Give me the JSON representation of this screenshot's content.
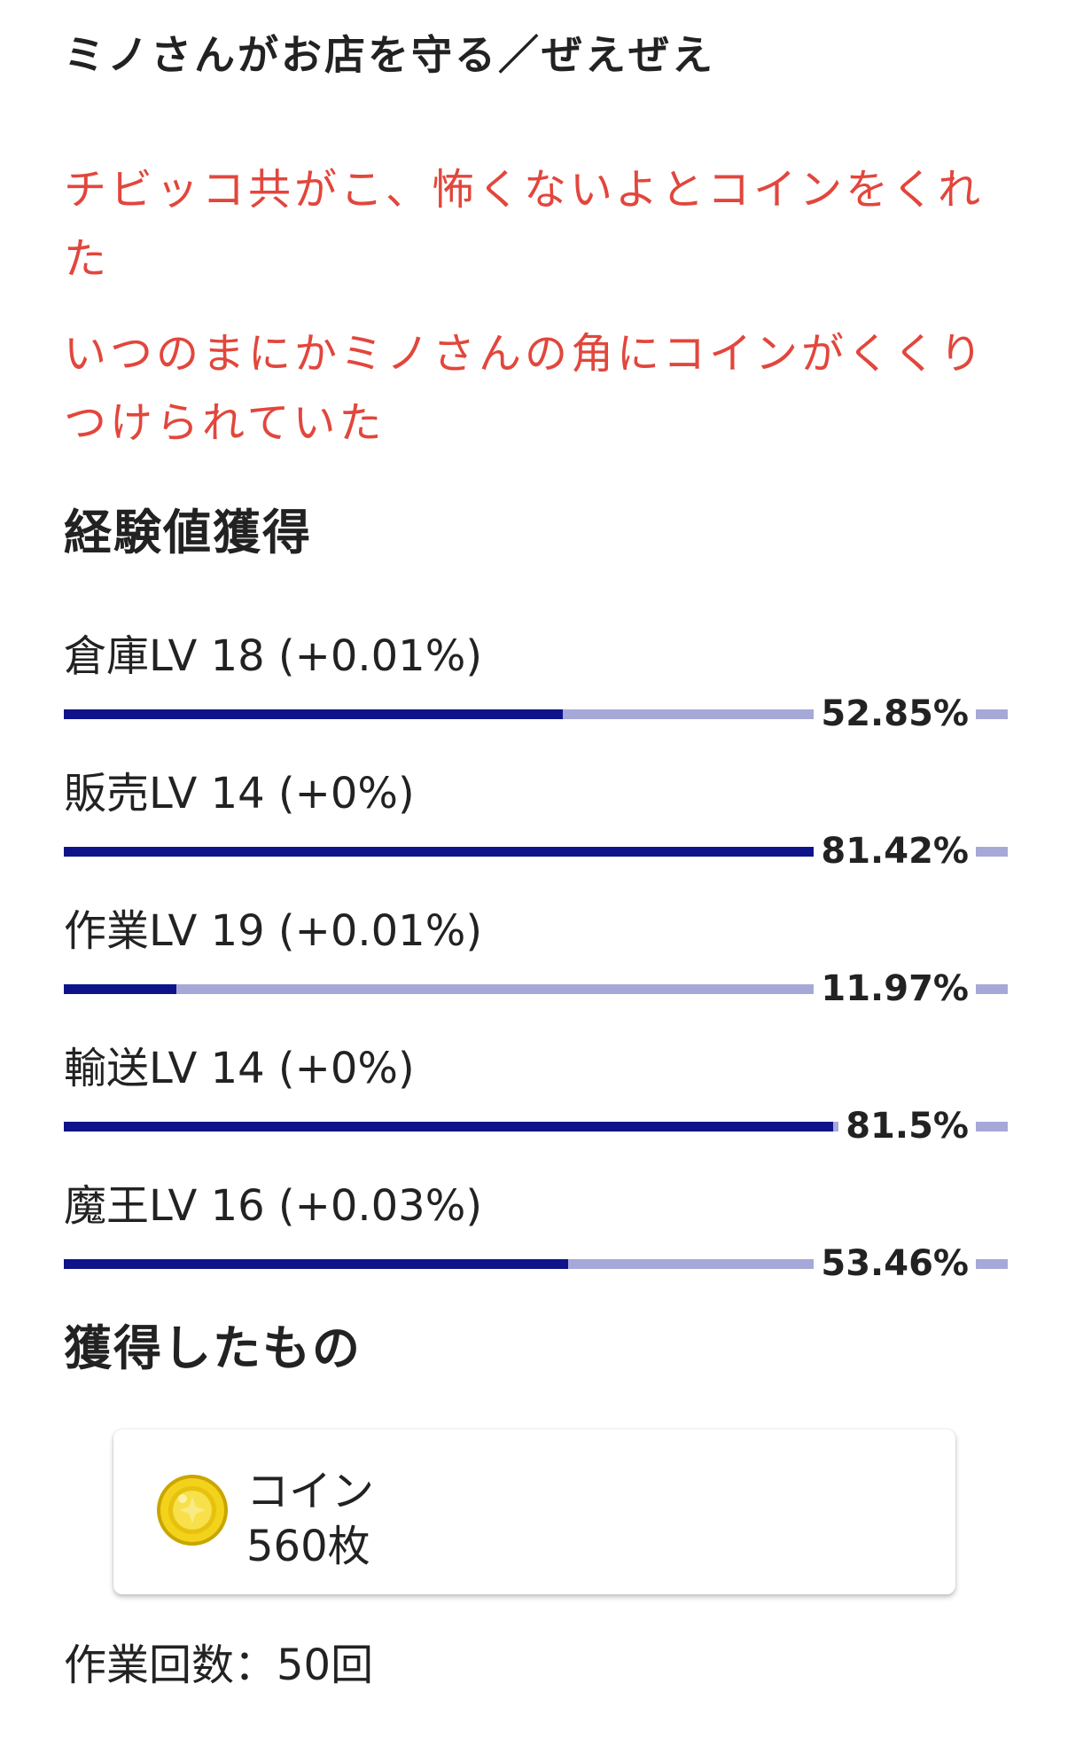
{
  "title": "ミノさんがお店を守る／ぜえぜえ",
  "messages": [
    "チビッコ共がこ、怖くないよとコインをくれた",
    "いつのまにかミノさんの角にコインがくくりつけられていた"
  ],
  "exp_heading": "経験値獲得",
  "skills": [
    {
      "label": "倉庫LV 18 (+0.01%)",
      "percent_text": "52.85%",
      "progress": 52.85
    },
    {
      "label": "販売LV 14 (+0%)",
      "percent_text": "81.42%",
      "progress": 81.42
    },
    {
      "label": "作業LV 19 (+0.01%)",
      "percent_text": "11.97%",
      "progress": 11.97
    },
    {
      "label": "輸送LV 14 (+0%)",
      "percent_text": "81.5%",
      "progress": 81.5
    },
    {
      "label": "魔王LV 16 (+0.03%)",
      "percent_text": "53.46%",
      "progress": 53.46
    }
  ],
  "acquired_heading": "獲得したもの",
  "item": {
    "icon": "gold-coin-icon",
    "name": "コイン",
    "quantity": "560枚"
  },
  "work_count": "作業回数：50回",
  "colors": {
    "message": "#e2463c",
    "bar_fill": "#0f138a",
    "bar_track": "#a6a8d8",
    "coin": "#f2d21a"
  }
}
